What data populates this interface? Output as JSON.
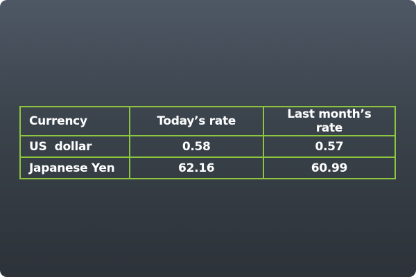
{
  "table": {
    "headers": [
      "Currency",
      "Today’s rate",
      "Last month’s rate"
    ],
    "rows": [
      {
        "currency": "US  dollar",
        "today": "0.58",
        "last_month": "0.57"
      },
      {
        "currency": "Japanese Yen",
        "today": "62.16",
        "last_month": "60.99"
      }
    ]
  },
  "colors": {
    "border": "#8cc63f",
    "text": "#ffffff",
    "background_top": "#4e5864",
    "background_bottom": "#2c3238"
  }
}
